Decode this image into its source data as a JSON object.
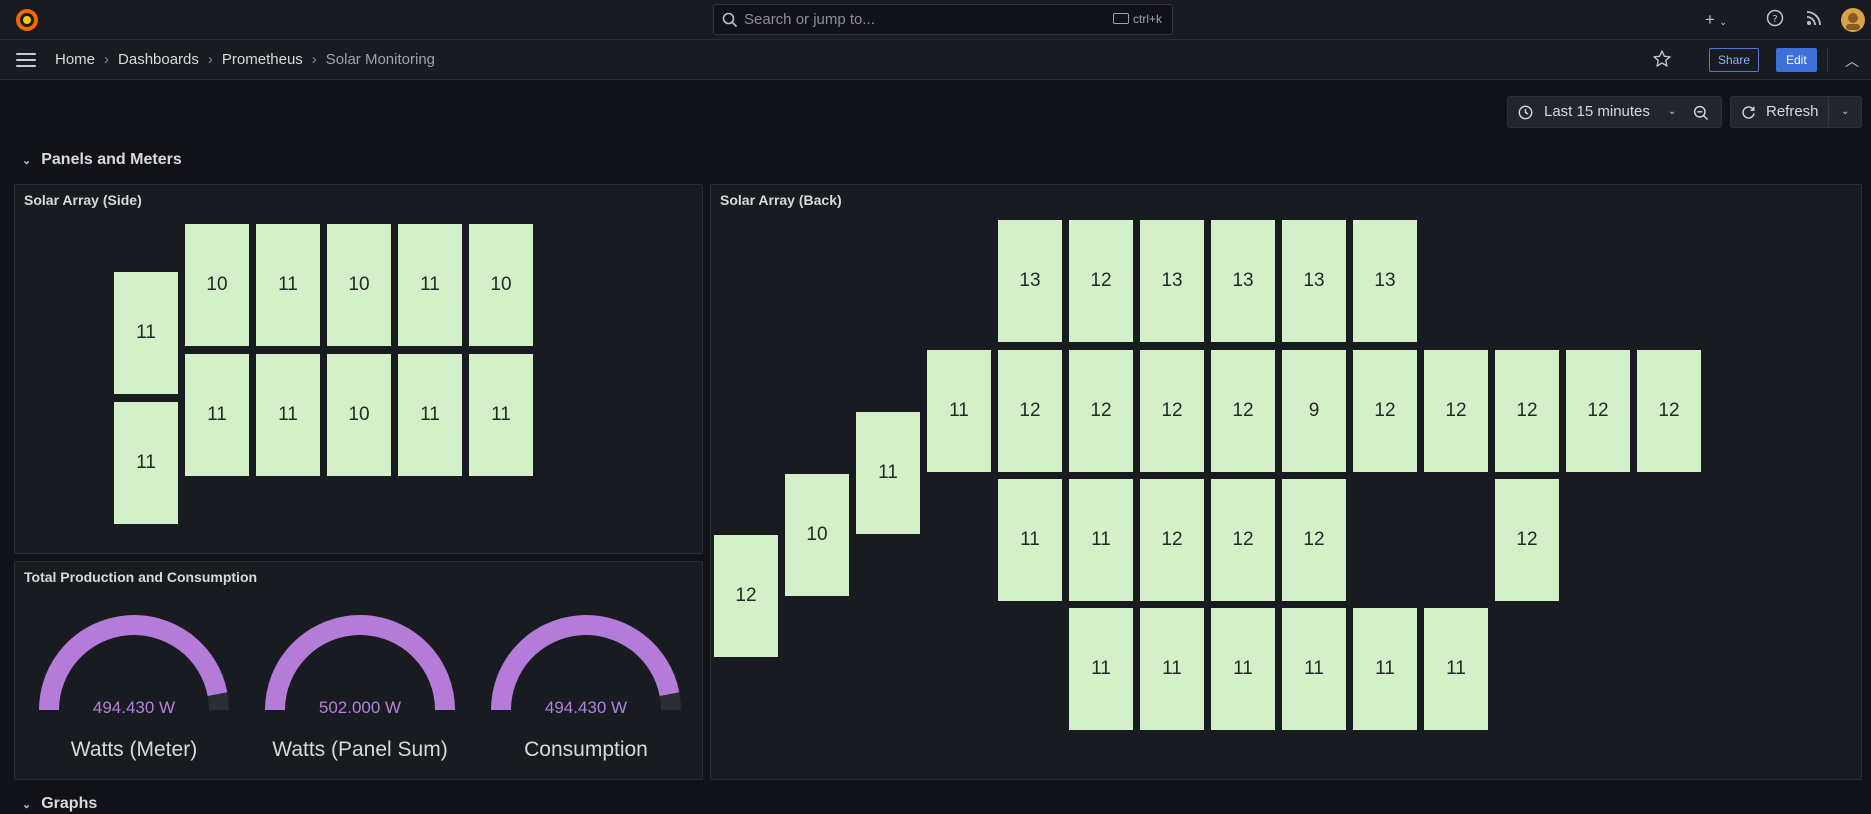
{
  "topbar": {
    "search_placeholder": "Search or jump to...",
    "search_shortcut": "ctrl+k",
    "new_label": "+",
    "icons": [
      "grafana-logo-icon",
      "search-icon",
      "plus-icon",
      "help-icon",
      "news-icon",
      "avatar"
    ]
  },
  "navbar": {
    "breadcrumbs": [
      "Home",
      "Dashboards",
      "Prometheus",
      "Solar Monitoring"
    ],
    "share_label": "Share",
    "edit_label": "Edit"
  },
  "toolbar": {
    "time_range": "Last 15 minutes",
    "refresh_label": "Refresh"
  },
  "rows": {
    "panels_and_meters": "Panels and Meters",
    "graphs": "Graphs"
  },
  "side_panel": {
    "title": "Solar Array (Side)",
    "tiles": [
      "11",
      "11",
      "10",
      "11",
      "10",
      "11",
      "10",
      "11",
      "11",
      "10",
      "11",
      "11"
    ]
  },
  "back_panel": {
    "title": "Solar Array (Back)",
    "tiles": [
      "13",
      "12",
      "13",
      "13",
      "13",
      "13",
      "11",
      "12",
      "12",
      "12",
      "12",
      "9",
      "12",
      "12",
      "12",
      "12",
      "12",
      "11",
      "10",
      "12",
      "11",
      "11",
      "12",
      "12",
      "12",
      "12",
      "11",
      "11",
      "11",
      "11",
      "11",
      "11"
    ]
  },
  "totals_panel": {
    "title": "Total Production and Consumption",
    "gauges": [
      {
        "value": "494.430 W",
        "label": "Watts (Meter)",
        "fraction": 0.94
      },
      {
        "value": "502.000 W",
        "label": "Watts (Panel Sum)",
        "fraction": 1.0
      },
      {
        "value": "494.430 W",
        "label": "Consumption",
        "fraction": 0.94
      }
    ]
  },
  "colors": {
    "background": "#111217",
    "panel": "#181b1f",
    "tile": "#d4f0c8",
    "gauge_fill": "#b57bd9",
    "gauge_track": "#2b2d33",
    "accent": "#3d71d9"
  }
}
